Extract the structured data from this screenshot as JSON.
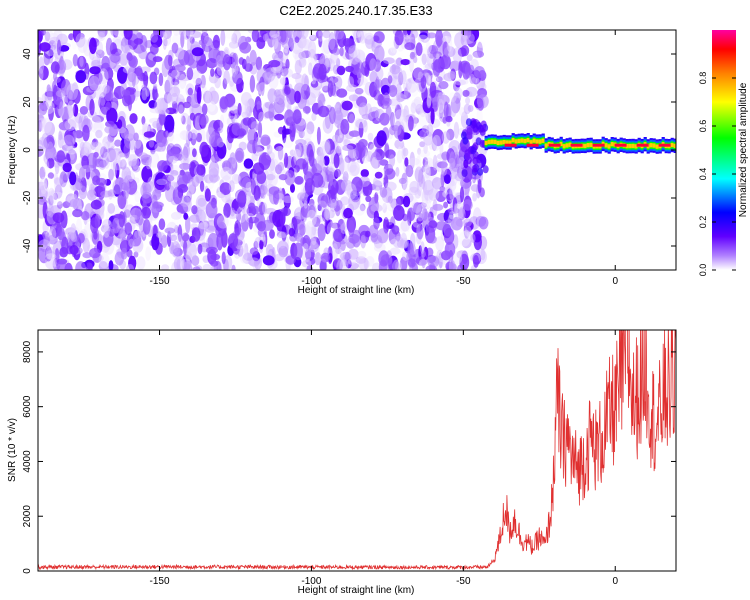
{
  "title": "C2E2.2025.240.17.35.E33",
  "chart_data": [
    {
      "type": "heatmap",
      "xlabel": "Height of straight line (km)",
      "ylabel": "Frequency (Hz)",
      "xlim": [
        -190,
        20
      ],
      "ylim": [
        -50,
        50
      ],
      "xticks": [
        -150,
        -100,
        -50,
        0
      ],
      "yticks": [
        -40,
        -20,
        0,
        20,
        40
      ],
      "colorbar": {
        "label": "Normalized spectral amplitude",
        "range": [
          0,
          1
        ],
        "ticks": [
          0.0,
          0.2,
          0.4,
          0.6,
          0.8
        ],
        "tick_labels": [
          "0.0",
          "0.2",
          "0.4",
          "0.6",
          "0.8"
        ],
        "colormap": [
          "#ffffff",
          "#b080ff",
          "#6000ff",
          "#0000ff",
          "#00ffff",
          "#00ff00",
          "#ffff00",
          "#ff8000",
          "#ff0000",
          "#ff00a0"
        ]
      },
      "noise_region_km": [
        -190,
        -43
      ],
      "noise_amplitude_range": [
        0.0,
        0.15
      ],
      "signal_band": {
        "x_range_km": [
          -43,
          20
        ],
        "center_freq_hz": 2,
        "half_width_hz": 3,
        "peak_amplitude": 0.95
      }
    },
    {
      "type": "line",
      "xlabel": "Height of straight line (km)",
      "ylabel": "SNR (10 * v/v)",
      "xlim": [
        -190,
        20
      ],
      "ylim": [
        0,
        8800
      ],
      "xticks": [
        -150,
        -100,
        -50,
        0
      ],
      "yticks": [
        0,
        2000,
        4000,
        6000,
        8000
      ],
      "color": "#e03030",
      "series_points": [
        [
          -190,
          150
        ],
        [
          -150,
          160
        ],
        [
          -100,
          150
        ],
        [
          -60,
          140
        ],
        [
          -42,
          150
        ],
        [
          -40,
          400
        ],
        [
          -38,
          1200
        ],
        [
          -36,
          2600
        ],
        [
          -35,
          1500
        ],
        [
          -33,
          2000
        ],
        [
          -31,
          1200
        ],
        [
          -29,
          1100
        ],
        [
          -27,
          900
        ],
        [
          -25,
          1300
        ],
        [
          -23,
          1000
        ],
        [
          -21,
          2400
        ],
        [
          -20,
          4500
        ],
        [
          -19,
          6700
        ],
        [
          -18,
          5500
        ],
        [
          -17,
          4800
        ],
        [
          -16,
          5200
        ],
        [
          -14,
          4200
        ],
        [
          -12,
          3900
        ],
        [
          -10,
          4400
        ],
        [
          -8,
          5100
        ],
        [
          -6,
          4600
        ],
        [
          -4,
          5200
        ],
        [
          -2,
          6000
        ],
        [
          0,
          6300
        ],
        [
          2,
          7300
        ],
        [
          4,
          8700
        ],
        [
          6,
          6400
        ],
        [
          8,
          7000
        ],
        [
          10,
          8200
        ],
        [
          12,
          6000
        ],
        [
          14,
          5600
        ],
        [
          16,
          6800
        ],
        [
          18,
          7100
        ],
        [
          20,
          7600
        ]
      ]
    }
  ]
}
